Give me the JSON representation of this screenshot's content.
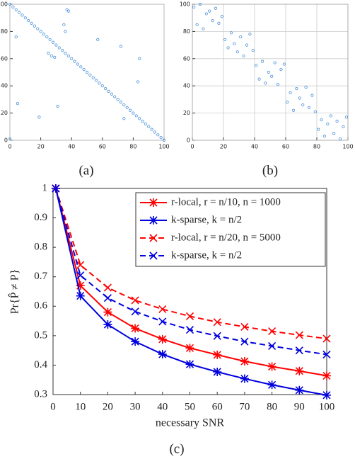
{
  "chart_data": [
    {
      "type": "scatter",
      "caption": "(a)",
      "color": "#4a90d9",
      "grid": false,
      "x": [
        0,
        2,
        4,
        6,
        8,
        10,
        12,
        14,
        16,
        18,
        20,
        22,
        24,
        26,
        28,
        30,
        32,
        34,
        36,
        38,
        40,
        42,
        44,
        46,
        48,
        50,
        52,
        54,
        56,
        58,
        60,
        62,
        64,
        66,
        68,
        70,
        72,
        74,
        76,
        78,
        80,
        82,
        84,
        86,
        88,
        90,
        92,
        94,
        96,
        98,
        100,
        0,
        4,
        5,
        19,
        25,
        27,
        29,
        31,
        35,
        36,
        37,
        38,
        57,
        72,
        74,
        83,
        84
      ],
      "y": [
        100,
        98,
        96,
        94,
        92,
        90,
        88,
        86,
        84,
        82,
        80,
        78,
        76,
        74,
        72,
        70,
        68,
        66,
        64,
        62,
        60,
        58,
        56,
        54,
        52,
        50,
        48,
        46,
        44,
        42,
        40,
        38,
        36,
        34,
        32,
        30,
        28,
        26,
        24,
        22,
        20,
        18,
        16,
        14,
        12,
        10,
        8,
        6,
        4,
        2,
        0,
        1,
        76,
        27,
        17,
        64,
        62,
        61,
        25,
        85,
        80,
        96,
        95,
        74,
        69,
        16,
        43,
        60
      ],
      "xlim": [
        0,
        100
      ],
      "ylim": [
        0,
        100
      ],
      "xticks": [
        0,
        20,
        40,
        60,
        80,
        100
      ],
      "yticks": [
        0,
        20,
        40,
        60,
        80,
        100
      ]
    },
    {
      "type": "scatter",
      "caption": "(b)",
      "color": "#4a90d9",
      "grid": true,
      "x": [
        1,
        3,
        5,
        7,
        9,
        11,
        13,
        15,
        17,
        19,
        21,
        23,
        25,
        27,
        29,
        31,
        33,
        35,
        37,
        39,
        41,
        43,
        45,
        47,
        49,
        51,
        53,
        55,
        57,
        59,
        61,
        63,
        65,
        67,
        69,
        71,
        73,
        75,
        77,
        79,
        81,
        83,
        85,
        87,
        89,
        91,
        93,
        95,
        97,
        99
      ],
      "y": [
        98,
        85,
        100,
        82,
        93,
        95,
        88,
        97,
        86,
        91,
        74,
        68,
        79,
        71,
        65,
        76,
        62,
        70,
        78,
        66,
        55,
        45,
        58,
        42,
        50,
        47,
        57,
        41,
        52,
        56,
        28,
        35,
        22,
        38,
        31,
        26,
        39,
        24,
        33,
        21,
        8,
        15,
        3,
        12,
        18,
        5,
        14,
        1,
        10,
        17
      ],
      "xlim": [
        0,
        100
      ],
      "ylim": [
        0,
        100
      ],
      "xticks": [
        0,
        20,
        40,
        60,
        80,
        100
      ],
      "yticks": [
        0,
        20,
        40,
        60,
        80,
        100
      ]
    },
    {
      "type": "line",
      "caption": "(c)",
      "xlabel": "necessary SNR",
      "ylabel": "Pr{P̂ ≠ P}",
      "grid": false,
      "legend": "upper right",
      "x": [
        1,
        10,
        20,
        30,
        40,
        50,
        60,
        70,
        80,
        90,
        100
      ],
      "series": [
        {
          "name": "r-local, r = n/10, n = 1000",
          "color": "#ff0000",
          "dash": false,
          "marker": "star",
          "values": [
            1,
            0.67,
            0.58,
            0.525,
            0.488,
            0.458,
            0.435,
            0.413,
            0.395,
            0.38,
            0.364
          ]
        },
        {
          "name": "k-sparse, k = n/2",
          "color": "#0000dd",
          "dash": false,
          "marker": "star",
          "values": [
            1,
            0.635,
            0.538,
            0.48,
            0.437,
            0.403,
            0.377,
            0.354,
            0.333,
            0.315,
            0.298
          ]
        },
        {
          "name": "r-local, r = n/20, n = 5000",
          "color": "#ff0000",
          "dash": true,
          "marker": "x",
          "values": [
            1,
            0.74,
            0.663,
            0.62,
            0.59,
            0.566,
            0.546,
            0.53,
            0.515,
            0.502,
            0.49
          ]
        },
        {
          "name": "k-sparse, k = n/2",
          "color": "#0000dd",
          "dash": true,
          "marker": "x",
          "values": [
            1,
            0.705,
            0.628,
            0.582,
            0.548,
            0.52,
            0.499,
            0.48,
            0.465,
            0.45,
            0.436
          ]
        }
      ],
      "xlim": [
        0,
        100
      ],
      "ylim": [
        0.3,
        1
      ],
      "xticks": [
        0,
        10,
        20,
        30,
        40,
        50,
        60,
        70,
        80,
        90,
        100
      ],
      "yticks": [
        0.3,
        0.4,
        0.5,
        0.6,
        0.7,
        0.8,
        0.9,
        1
      ]
    }
  ]
}
